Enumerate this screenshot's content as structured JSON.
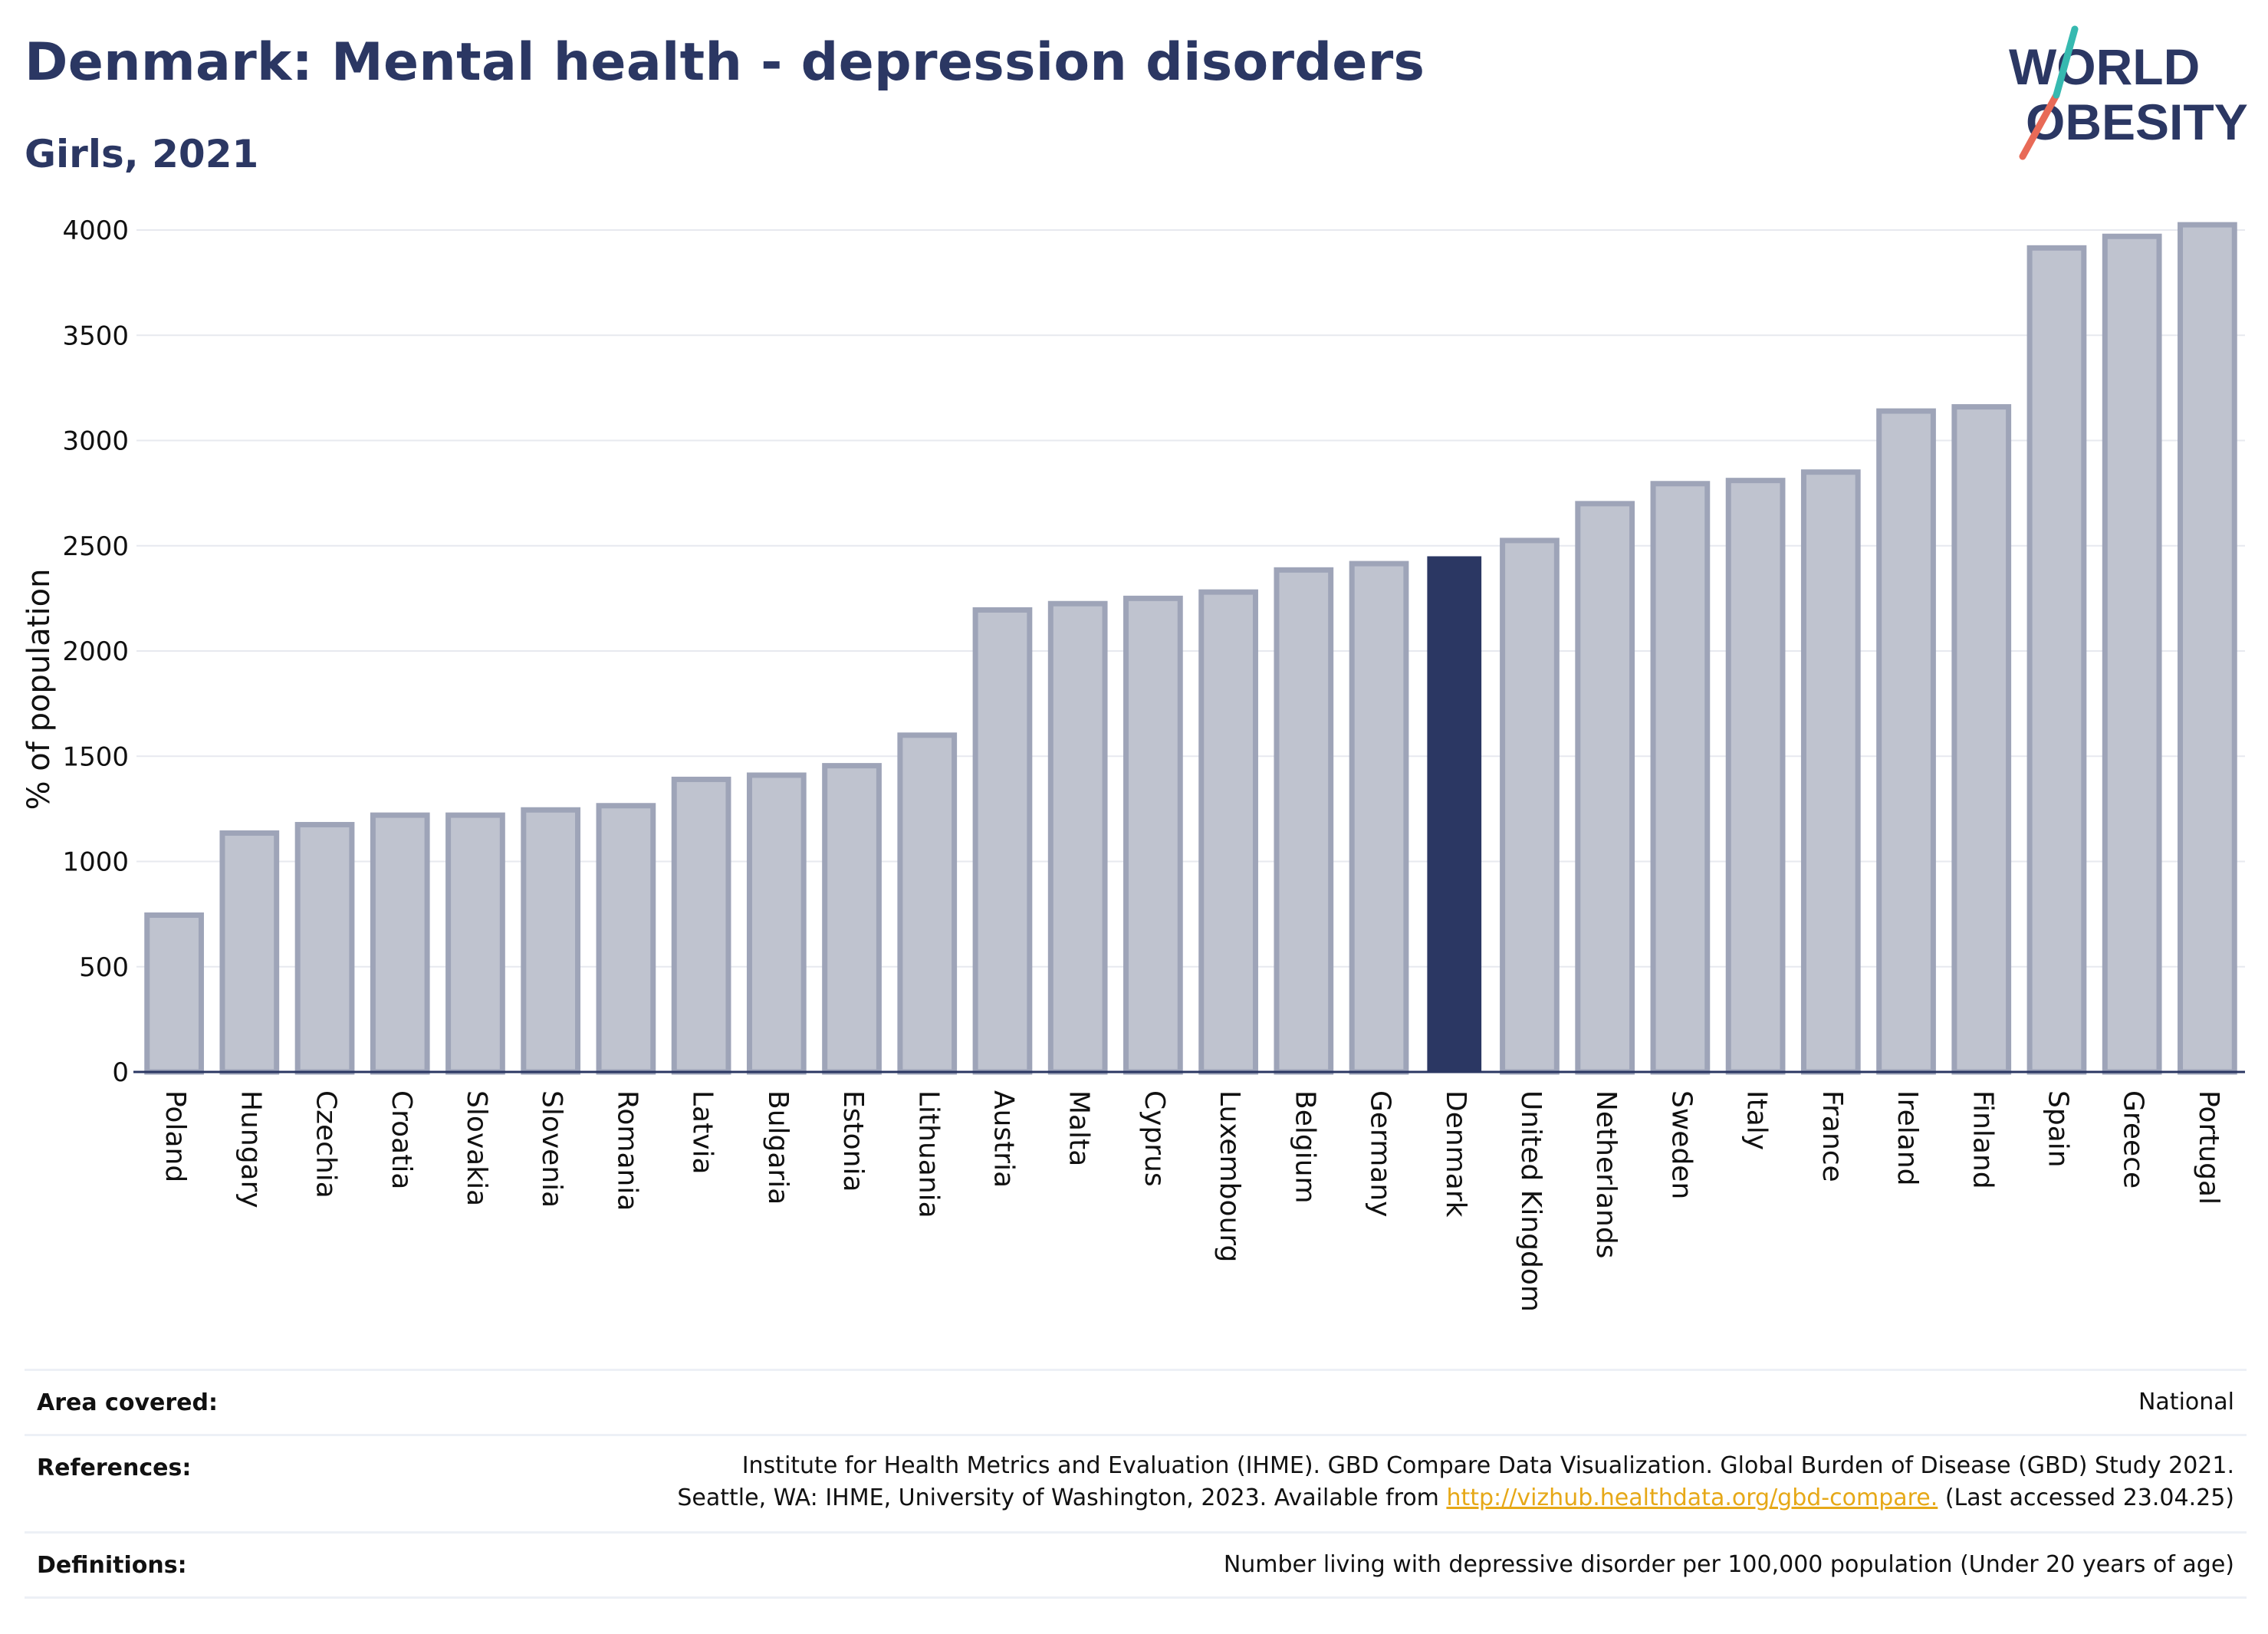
{
  "header": {
    "title": "Denmark: Mental health - depression disorders",
    "subtitle": "Girls, 2021"
  },
  "logo": {
    "line1": "WORLD",
    "line2": "OBESITY",
    "text_color": "#2b3763",
    "slash_colors": [
      "#e86a57",
      "#36b9b0"
    ]
  },
  "chart_data": {
    "type": "bar",
    "title": "",
    "xlabel": "",
    "ylabel": "% of population",
    "ylim": [
      0,
      4000
    ],
    "yticks": [
      0,
      500,
      1000,
      1500,
      2000,
      2500,
      3000,
      3500,
      4000
    ],
    "grid": true,
    "categories": [
      "Poland",
      "Hungary",
      "Czechia",
      "Croatia",
      "Slovakia",
      "Slovenia",
      "Romania",
      "Latvia",
      "Bulgaria",
      "Estonia",
      "Lithuania",
      "Austria",
      "Malta",
      "Cyprus",
      "Luxembourg",
      "Belgium",
      "Germany",
      "Denmark",
      "United Kingdom",
      "Netherlands",
      "Sweden",
      "Italy",
      "France",
      "Ireland",
      "Finland",
      "Spain",
      "Greece",
      "Portugal"
    ],
    "values": [
      745,
      1135,
      1175,
      1220,
      1220,
      1245,
      1265,
      1390,
      1410,
      1455,
      1600,
      2195,
      2225,
      2250,
      2280,
      2385,
      2415,
      2450,
      2525,
      2700,
      2795,
      2810,
      2850,
      3140,
      3160,
      3915,
      3970,
      4025
    ],
    "highlight": "Denmark",
    "colors": {
      "bar": "#bfc3cf",
      "bar_border": "#9ea4b8",
      "highlight": "#2b3763"
    }
  },
  "meta": {
    "area_label": "Area covered:",
    "area_value": "National",
    "references_label": "References:",
    "references_line1": "Institute for Health Metrics and Evaluation (IHME). GBD Compare Data Visualization. Global Burden of Disease (GBD) Study 2021.",
    "references_line2_pre": "Seattle, WA: IHME, University of Washington, 2023. Available from ",
    "references_link": "http://vizhub.healthdata.org/gbd-compare.",
    "references_line2_post": " (Last accessed 23.04.25)",
    "definitions_label": "Definitions:",
    "definitions_value": "Number living with depressive disorder per 100,000 population (Under 20 years of age)"
  }
}
